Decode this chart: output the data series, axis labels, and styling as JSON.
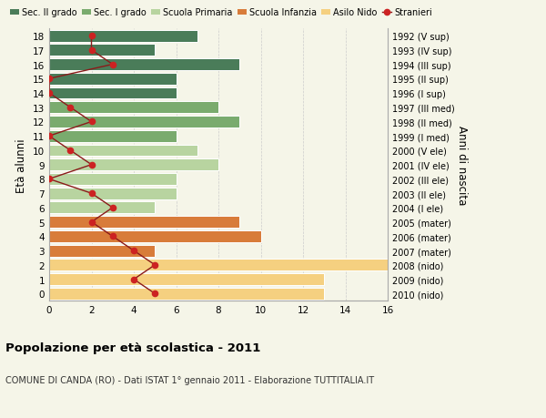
{
  "ages": [
    18,
    17,
    16,
    15,
    14,
    13,
    12,
    11,
    10,
    9,
    8,
    7,
    6,
    5,
    4,
    3,
    2,
    1,
    0
  ],
  "right_labels": [
    "1992 (V sup)",
    "1993 (IV sup)",
    "1994 (III sup)",
    "1995 (II sup)",
    "1996 (I sup)",
    "1997 (III med)",
    "1998 (II med)",
    "1999 (I med)",
    "2000 (V ele)",
    "2001 (IV ele)",
    "2002 (III ele)",
    "2003 (II ele)",
    "2004 (I ele)",
    "2005 (mater)",
    "2006 (mater)",
    "2007 (mater)",
    "2008 (nido)",
    "2009 (nido)",
    "2010 (nido)"
  ],
  "bar_values": [
    7,
    5,
    9,
    6,
    6,
    8,
    9,
    6,
    7,
    8,
    6,
    6,
    5,
    9,
    10,
    5,
    16,
    13,
    13
  ],
  "bar_colors": [
    "#4a7c59",
    "#4a7c59",
    "#4a7c59",
    "#4a7c59",
    "#4a7c59",
    "#7aab6e",
    "#7aab6e",
    "#7aab6e",
    "#b8d4a0",
    "#b8d4a0",
    "#b8d4a0",
    "#b8d4a0",
    "#b8d4a0",
    "#d87c3a",
    "#d87c3a",
    "#d87c3a",
    "#f5d080",
    "#f5d080",
    "#f5d080"
  ],
  "stranieri_values": [
    2,
    2,
    3,
    0,
    0,
    1,
    2,
    0,
    1,
    2,
    0,
    2,
    3,
    2,
    3,
    4,
    5,
    4,
    5
  ],
  "legend_labels": [
    "Sec. II grado",
    "Sec. I grado",
    "Scuola Primaria",
    "Scuola Infanzia",
    "Asilo Nido",
    "Stranieri"
  ],
  "legend_colors": [
    "#4a7c59",
    "#7aab6e",
    "#b8d4a0",
    "#d87c3a",
    "#f5d080",
    "#9b1c1c"
  ],
  "ylabel": "Età alunni",
  "right_ylabel": "Anni di nascita",
  "title": "Popolazione per età scolastica - 2011",
  "subtitle": "COMUNE DI CANDA (RO) - Dati ISTAT 1° gennaio 2011 - Elaborazione TUTTITALIA.IT",
  "xlim": [
    0,
    16
  ],
  "background_color": "#f5f5e8",
  "grid_color": "#cccccc",
  "bar_edge_color": "#ffffff",
  "stranieri_line_color": "#8b1a1a",
  "stranieri_marker_color": "#cc2222"
}
